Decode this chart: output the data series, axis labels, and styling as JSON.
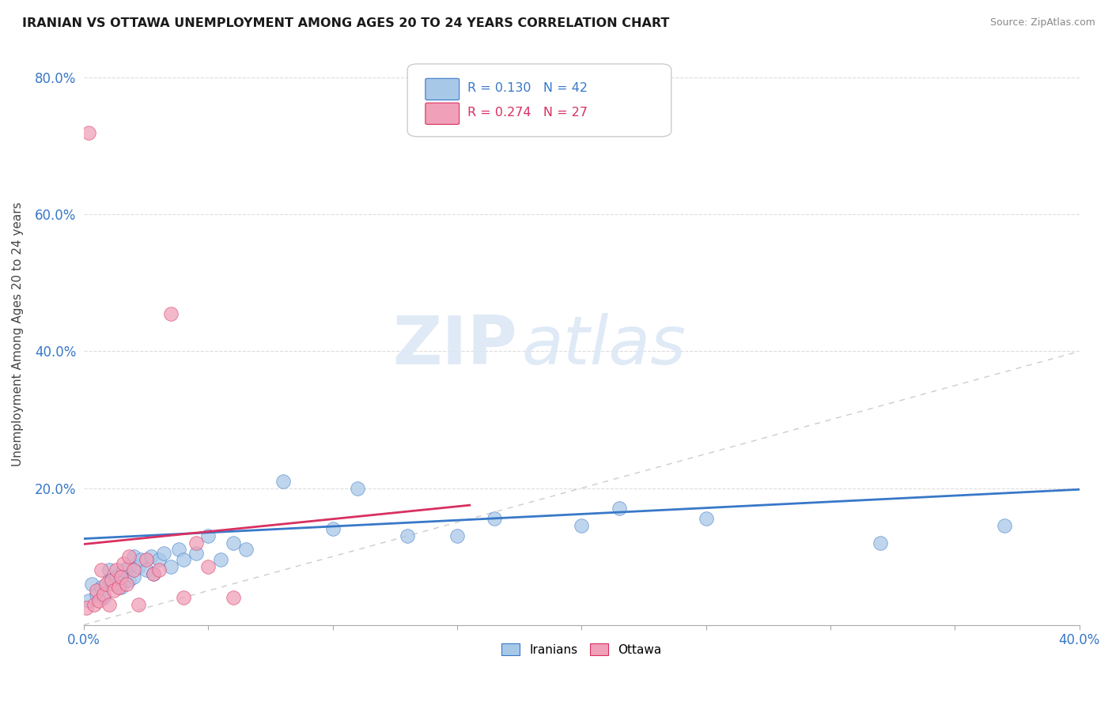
{
  "title": "IRANIAN VS OTTAWA UNEMPLOYMENT AMONG AGES 20 TO 24 YEARS CORRELATION CHART",
  "source": "Source: ZipAtlas.com",
  "ylabel": "Unemployment Among Ages 20 to 24 years",
  "xlim": [
    0.0,
    0.4
  ],
  "ylim": [
    0.0,
    0.85
  ],
  "xticks": [
    0.0,
    0.05,
    0.1,
    0.15,
    0.2,
    0.25,
    0.3,
    0.35,
    0.4
  ],
  "yticks": [
    0.0,
    0.2,
    0.4,
    0.6,
    0.8
  ],
  "r_iranians": 0.13,
  "n_iranians": 42,
  "r_ottawa": 0.274,
  "n_ottawa": 27,
  "iranians_color": "#a8c8e8",
  "ottawa_color": "#f0a0b8",
  "trendline_iranians_color": "#3878c8",
  "trendline_ottawa_color": "#d83060",
  "trendline_diag_color": "#cccccc",
  "background_color": "#ffffff",
  "iranians_x": [
    0.002,
    0.003,
    0.005,
    0.007,
    0.008,
    0.01,
    0.01,
    0.012,
    0.013,
    0.015,
    0.015,
    0.016,
    0.018,
    0.018,
    0.02,
    0.02,
    0.022,
    0.023,
    0.025,
    0.027,
    0.028,
    0.03,
    0.032,
    0.035,
    0.038,
    0.04,
    0.045,
    0.05,
    0.055,
    0.06,
    0.065,
    0.08,
    0.1,
    0.11,
    0.13,
    0.15,
    0.165,
    0.2,
    0.215,
    0.25,
    0.32,
    0.37
  ],
  "iranians_y": [
    0.035,
    0.06,
    0.045,
    0.055,
    0.04,
    0.065,
    0.08,
    0.06,
    0.07,
    0.055,
    0.07,
    0.08,
    0.065,
    0.085,
    0.07,
    0.1,
    0.085,
    0.095,
    0.08,
    0.1,
    0.075,
    0.095,
    0.105,
    0.085,
    0.11,
    0.095,
    0.105,
    0.13,
    0.095,
    0.12,
    0.11,
    0.21,
    0.14,
    0.2,
    0.13,
    0.13,
    0.155,
    0.145,
    0.17,
    0.155,
    0.12,
    0.145
  ],
  "ottawa_x": [
    0.001,
    0.002,
    0.004,
    0.005,
    0.006,
    0.007,
    0.008,
    0.009,
    0.01,
    0.011,
    0.012,
    0.013,
    0.014,
    0.015,
    0.016,
    0.017,
    0.018,
    0.02,
    0.022,
    0.025,
    0.028,
    0.03,
    0.035,
    0.04,
    0.045,
    0.05,
    0.06
  ],
  "ottawa_y": [
    0.025,
    0.72,
    0.03,
    0.05,
    0.035,
    0.08,
    0.045,
    0.06,
    0.03,
    0.065,
    0.05,
    0.08,
    0.055,
    0.07,
    0.09,
    0.06,
    0.1,
    0.08,
    0.03,
    0.095,
    0.075,
    0.08,
    0.455,
    0.04,
    0.12,
    0.085,
    0.04
  ],
  "watermark_zip": "ZIP",
  "watermark_atlas": "atlas"
}
